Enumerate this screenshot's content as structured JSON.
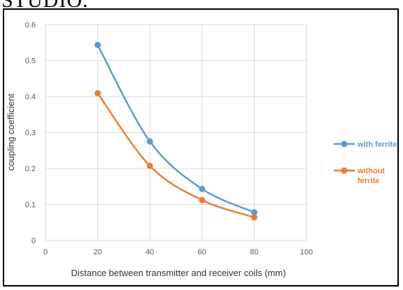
{
  "header": {
    "cropped_text": "STUDIO."
  },
  "chart_data": {
    "type": "line",
    "xlabel": "Distance between transmitter and receiver coils (mm)",
    "ylabel": "coupling coefficient",
    "xlim": [
      0,
      100
    ],
    "ylim": [
      0,
      0.6
    ],
    "x_ticks": [
      "0",
      "20",
      "40",
      "60",
      "80",
      "100"
    ],
    "y_ticks": [
      "0",
      "0.1",
      "0.2",
      "0.3",
      "0.4",
      "0.5",
      "0.6"
    ],
    "grid": true,
    "legend_position": "right",
    "series": [
      {
        "name": "with ferrite",
        "color": "#5b9bd5",
        "x": [
          20,
          40,
          60,
          80
        ],
        "y": [
          0.543,
          0.275,
          0.143,
          0.078
        ]
      },
      {
        "name": "without ferrite",
        "color": "#ed7d31",
        "x": [
          20,
          40,
          60,
          80
        ],
        "y": [
          0.409,
          0.207,
          0.112,
          0.064
        ]
      }
    ]
  }
}
